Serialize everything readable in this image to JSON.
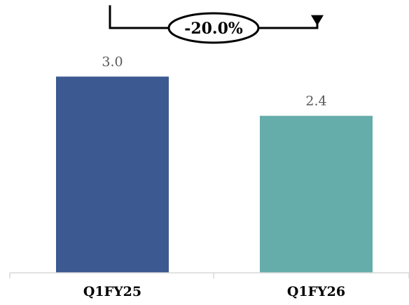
{
  "chart_data": {
    "type": "bar",
    "categories": [
      "Q1FY25",
      "Q1FY26"
    ],
    "values": [
      3.0,
      2.4
    ],
    "value_labels": [
      "3.0",
      "2.4"
    ],
    "colors": [
      "#3C5A91",
      "#65ADAA"
    ],
    "ylim": [
      0,
      3.7
    ],
    "grid": false,
    "annotation": {
      "type": "change-arrow",
      "from": "Q1FY25",
      "to": "Q1FY26",
      "text": "-20.0%"
    }
  }
}
